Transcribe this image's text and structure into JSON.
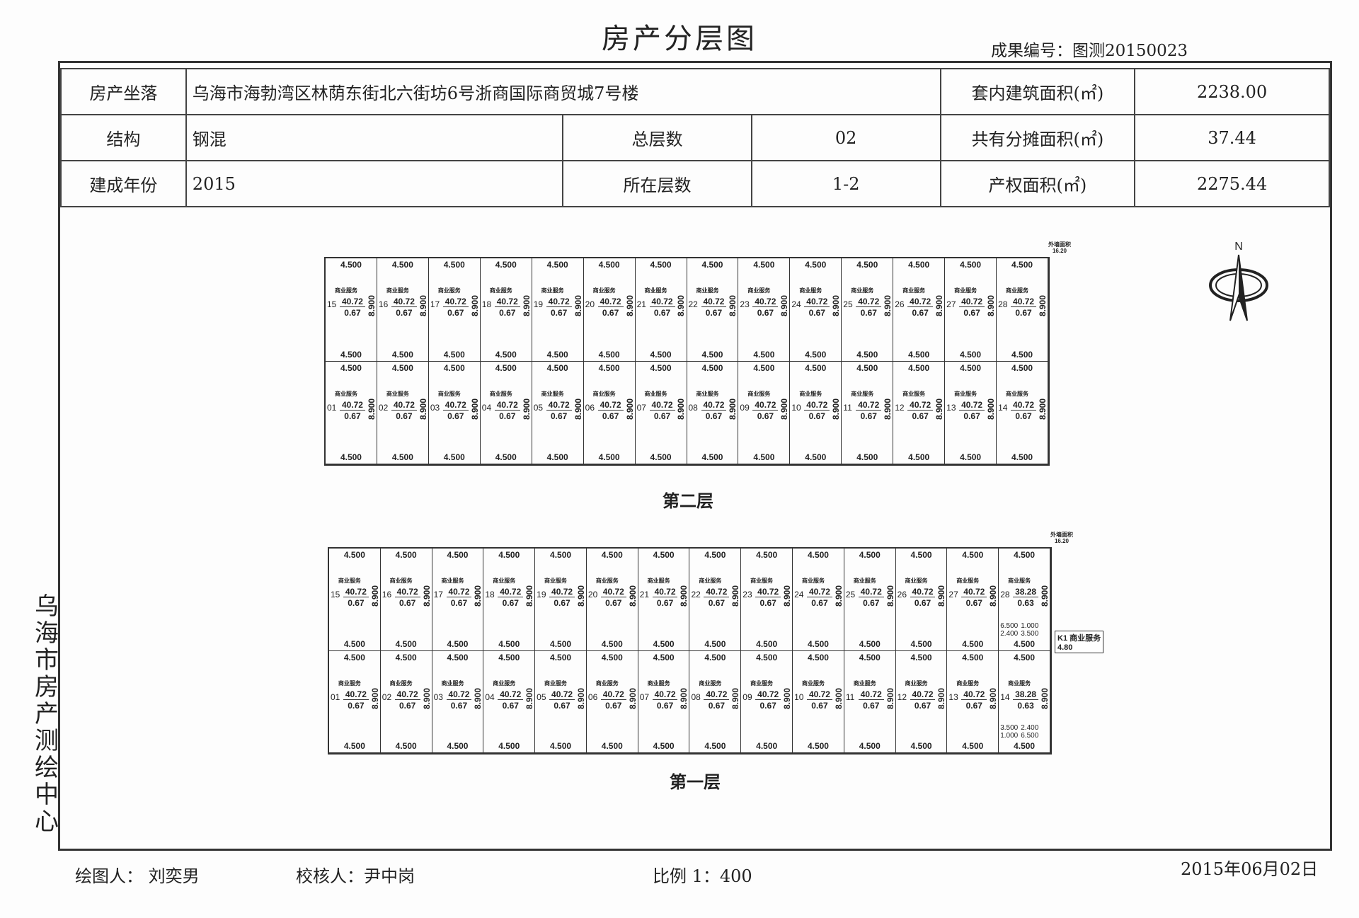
{
  "title": "房产分层图",
  "doc_no": "成果编号：图测20150023",
  "info": {
    "location_label": "房产坐落",
    "location": "乌海市海勃湾区林荫东街北六街坊6号浙商国际商贸城7号楼",
    "inner_area_label": "套内建筑面积(㎡)",
    "inner_area": "2238.00",
    "structure_label": "结构",
    "structure": "钢混",
    "total_floors_label": "总层数",
    "total_floors": "02",
    "shared_area_label": "共有分摊面积(㎡)",
    "shared_area": "37.44",
    "year_label": "建成年份",
    "year": "2015",
    "floor_range_label": "所在层数",
    "floor_range": "1-2",
    "title_area_label": "产权面积(㎡)",
    "title_area": "2275.44"
  },
  "floors": [
    {
      "label": "第二层",
      "wall_label": "外墙面积",
      "wall_area": "16.20",
      "rows": [
        [
          "15",
          "16",
          "17",
          "18",
          "19",
          "20",
          "21",
          "22",
          "23",
          "24",
          "25",
          "26",
          "27",
          "28"
        ],
        [
          "01",
          "02",
          "03",
          "04",
          "05",
          "06",
          "07",
          "08",
          "09",
          "10",
          "11",
          "12",
          "13",
          "14"
        ]
      ],
      "use": "商业服务",
      "area": "40.72",
      "share": "0.67",
      "width": "4.500",
      "depth": "8.900",
      "special": {}
    },
    {
      "label": "第一层",
      "wall_label": "外墙面积",
      "wall_area": "16.20",
      "rows": [
        [
          "15",
          "16",
          "17",
          "18",
          "19",
          "20",
          "21",
          "22",
          "23",
          "24",
          "25",
          "26",
          "27",
          "28"
        ],
        [
          "01",
          "02",
          "03",
          "04",
          "05",
          "06",
          "07",
          "08",
          "09",
          "10",
          "11",
          "12",
          "13",
          "14"
        ]
      ],
      "use": "商业服务",
      "area": "40.72",
      "share": "0.67",
      "width": "4.500",
      "depth": "8.900",
      "special": {
        "28": {
          "area": "38.28",
          "share": "0.63",
          "extra": [
            "6.500",
            "1.000",
            "2.400",
            "3.500"
          ]
        },
        "14": {
          "area": "38.28",
          "share": "0.63",
          "extra": [
            "3.500",
            "2.400",
            "1.000",
            "6.500"
          ]
        }
      },
      "k1": {
        "label": "K1",
        "use": "商业服务",
        "area": "4.80"
      }
    }
  ],
  "north_label": "N",
  "side_text": "乌海市房产测绘中心",
  "footer": {
    "drawer": "绘图人：  刘奕男",
    "checker": "校核人：尹中岗",
    "scale": "比例  1：400",
    "date": "2015年06月02日"
  }
}
